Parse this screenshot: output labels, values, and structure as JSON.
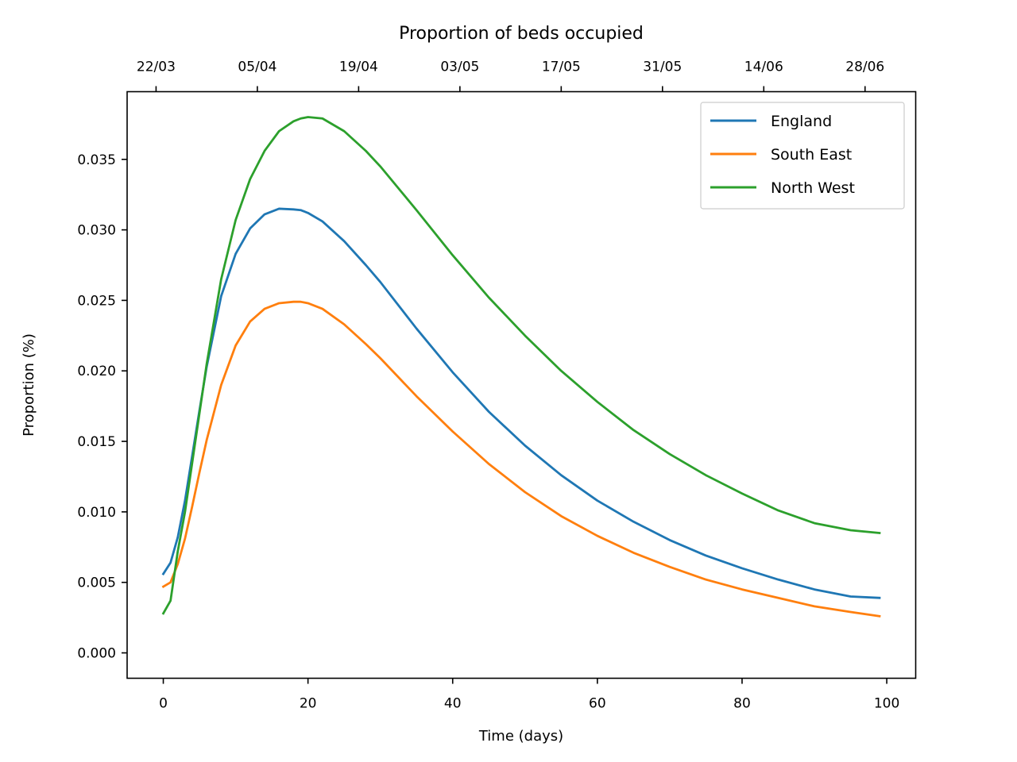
{
  "chart_data": {
    "type": "line",
    "title": "Proportion of beds occupied",
    "xlabel": "Time (days)",
    "ylabel": "Proportion (%)",
    "xlim": [
      -5,
      104
    ],
    "ylim": [
      -0.0018,
      0.0398
    ],
    "x_ticks": [
      "0",
      "20",
      "40",
      "60",
      "80",
      "100"
    ],
    "y_ticks": [
      "0.000",
      "0.005",
      "0.010",
      "0.015",
      "0.020",
      "0.025",
      "0.030",
      "0.035"
    ],
    "top_axis": {
      "labels": [
        "22/03",
        "05/04",
        "19/04",
        "03/05",
        "17/05",
        "31/05",
        "14/06",
        "28/06"
      ],
      "day_values": [
        -1,
        13,
        27,
        41,
        55,
        69,
        83,
        97
      ]
    },
    "grid": false,
    "legend_position": "top-right",
    "x": [
      0,
      1,
      2,
      3,
      4,
      5,
      6,
      8,
      10,
      12,
      14,
      16,
      18,
      19,
      20,
      22,
      25,
      28,
      30,
      35,
      40,
      45,
      50,
      55,
      60,
      65,
      70,
      75,
      80,
      85,
      90,
      95,
      99
    ],
    "series": [
      {
        "name": "England",
        "color": "#1f77b4",
        "values": [
          0.0056,
          0.0064,
          0.0082,
          0.0108,
          0.014,
          0.0172,
          0.0203,
          0.0253,
          0.0283,
          0.0301,
          0.0311,
          0.0315,
          0.03145,
          0.0314,
          0.0312,
          0.0306,
          0.0292,
          0.0275,
          0.0263,
          0.023,
          0.0199,
          0.0171,
          0.0147,
          0.0126,
          0.0108,
          0.0093,
          0.008,
          0.0069,
          0.006,
          0.0052,
          0.0045,
          0.004,
          0.0039
        ]
      },
      {
        "name": "South East",
        "color": "#ff7f0e",
        "values": [
          0.0047,
          0.005,
          0.0063,
          0.0081,
          0.0104,
          0.0128,
          0.0151,
          0.019,
          0.0218,
          0.0235,
          0.0244,
          0.0248,
          0.0249,
          0.0249,
          0.0248,
          0.0244,
          0.0233,
          0.0219,
          0.0209,
          0.0182,
          0.0157,
          0.0134,
          0.0114,
          0.0097,
          0.0083,
          0.0071,
          0.0061,
          0.0052,
          0.0045,
          0.0039,
          0.0033,
          0.0029,
          0.0026
        ]
      },
      {
        "name": "North West",
        "color": "#2ca02c",
        "values": [
          0.0028,
          0.0037,
          0.0072,
          0.01,
          0.0135,
          0.017,
          0.0205,
          0.0265,
          0.0307,
          0.0336,
          0.0356,
          0.037,
          0.0377,
          0.0379,
          0.038,
          0.0379,
          0.037,
          0.0356,
          0.0345,
          0.0314,
          0.0282,
          0.0252,
          0.0225,
          0.02,
          0.0178,
          0.0158,
          0.0141,
          0.0126,
          0.0113,
          0.0101,
          0.0092,
          0.0087,
          0.0085
        ]
      }
    ]
  }
}
